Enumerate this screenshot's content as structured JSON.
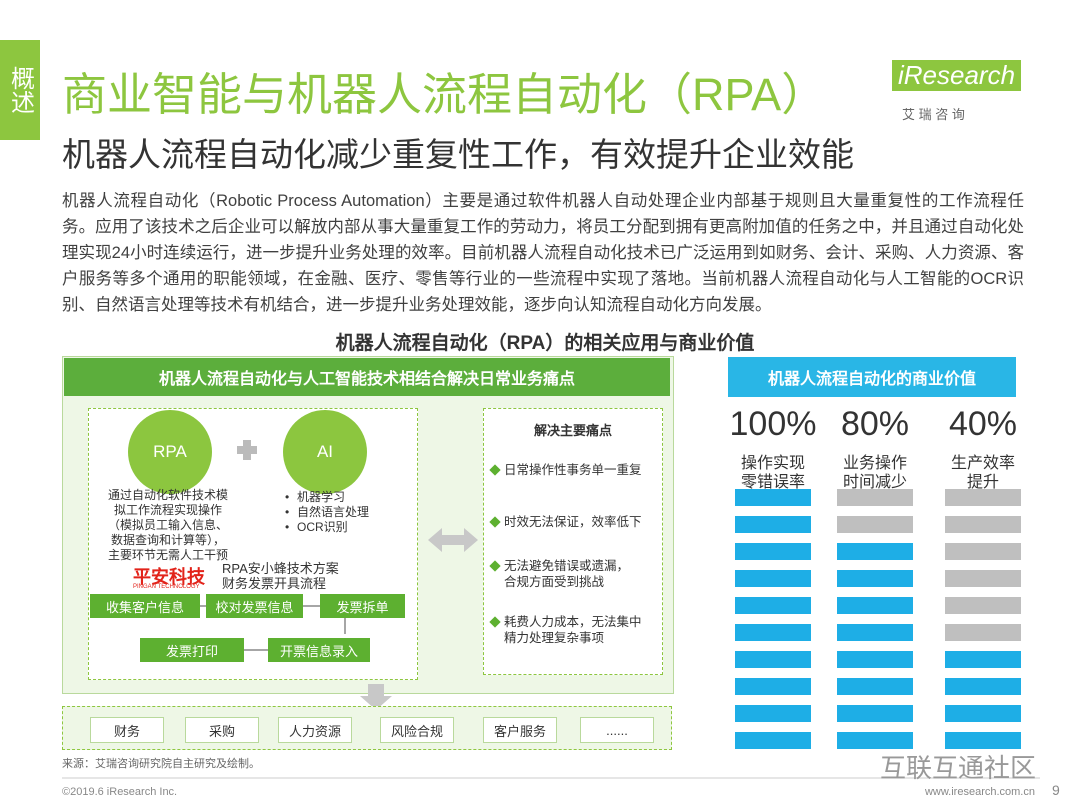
{
  "side_tab": "概述",
  "title": "商业智能与机器人流程自动化（RPA）",
  "logo": {
    "brand": "iResearch",
    "sub": "艾 瑞 咨 询"
  },
  "subtitle": "机器人流程自动化减少重复性工作，有效提升企业效能",
  "body": "机器人流程自动化（Robotic Process Automation）主要是通过软件机器人自动处理企业内部基于规则且大量重复性的工作流程任务。应用了该技术之后企业可以解放内部从事大量重复工作的劳动力，将员工分配到拥有更高附加值的任务之中，并且通过自动化处理实现24小时连续运行，进一步提升业务处理的效率。目前机器人流程自动化技术已广泛运用到如财务、会计、采购、人力资源、客户服务等多个通用的职能领域，在金融、医疗、零售等行业的一些流程中实现了落地。当前机器人流程自动化与人工智能的OCR识别、自然语言处理等技术有机结合，进一步提升业务处理效能，逐步向认知流程自动化方向发展。",
  "figure_title": "机器人流程自动化（RPA）的相关应用与商业价值",
  "left_panel": {
    "header": "机器人流程自动化与人工智能技术相结合解决日常业务痛点",
    "rpa": {
      "label": "RPA",
      "lines": [
        "通过自动化软件技术模",
        "拟工作流程实现操作",
        "（模拟员工输入信息、",
        "数据查询和计算等），",
        "主要环节无需人工干预"
      ]
    },
    "ai": {
      "label": "AI",
      "items": [
        "机器学习",
        "自然语言处理",
        "OCR识别"
      ]
    },
    "company": {
      "name": "平安科技",
      "en": "PINGAN TECHNOLOGY"
    },
    "flow_title": [
      "RPA安小蜂技术方案",
      "财务发票开具流程"
    ],
    "flow_steps": [
      "收集客户信息",
      "校对发票信息",
      "发票拆单",
      "开票信息录入",
      "发票打印"
    ],
    "pain": {
      "title": "解决主要痛点",
      "items": [
        [
          "日常操作性事务单一重复"
        ],
        [
          "时效无法保证，效率低下"
        ],
        [
          "无法避免错误或遗漏，",
          "合规方面受到挑战"
        ],
        [
          "耗费人力成本，无法集中",
          "精力处理复杂事项"
        ]
      ]
    },
    "domains": [
      "财务",
      "采购",
      "人力资源",
      "风险合规",
      "客户服务",
      "......"
    ]
  },
  "right_panel": {
    "header": "机器人流程自动化的商业价值",
    "items": [
      {
        "value": 100,
        "label": "100%",
        "caption": [
          "操作实现",
          "零错误率"
        ]
      },
      {
        "value": 80,
        "label": "80%",
        "caption": [
          "业务操作",
          "时间减少"
        ]
      },
      {
        "value": 40,
        "label": "40%",
        "caption": [
          "生产效率",
          "提升"
        ]
      }
    ]
  },
  "source": "来源：艾瑞咨询研究院自主研究及绘制。",
  "watermark": "互联互通社区",
  "footer": {
    "copyright": "©2019.6 iResearch Inc.",
    "website": "www.iresearch.com.cn",
    "page": "9"
  }
}
